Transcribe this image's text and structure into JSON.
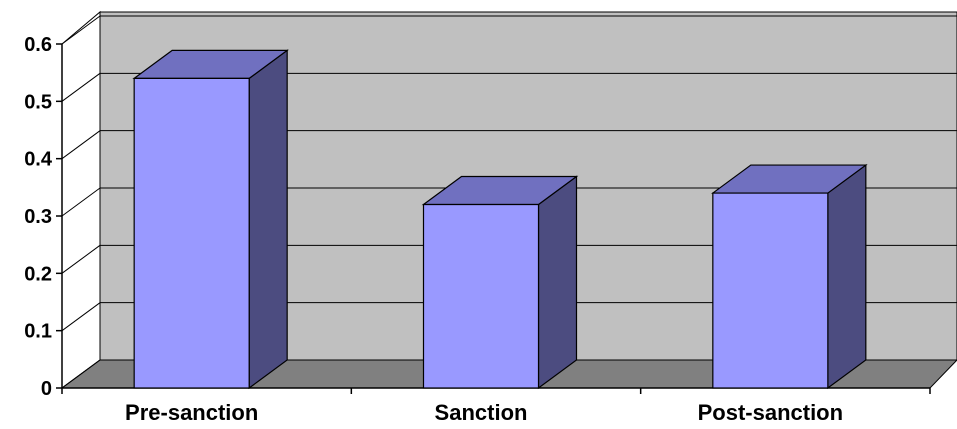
{
  "chart_data": {
    "type": "bar",
    "style": "3d-column",
    "title": "",
    "xlabel": "",
    "ylabel": "",
    "categories": [
      "Pre-sanction",
      "Sanction",
      "Post-sanction"
    ],
    "values": [
      0.54,
      0.32,
      0.34
    ],
    "ylim": [
      0,
      0.6
    ],
    "y_ticks": [
      "0",
      "0.1",
      "0.2",
      "0.3",
      "0.4",
      "0.5",
      "0.6"
    ],
    "grid": true,
    "legend": "none",
    "colors": {
      "bar_front": "#9999ff",
      "bar_top": "#7070c0",
      "bar_side": "#4c4c80",
      "wall": "#c0c0c0",
      "floor": "#808080",
      "side_wall": "#ffffff"
    }
  }
}
